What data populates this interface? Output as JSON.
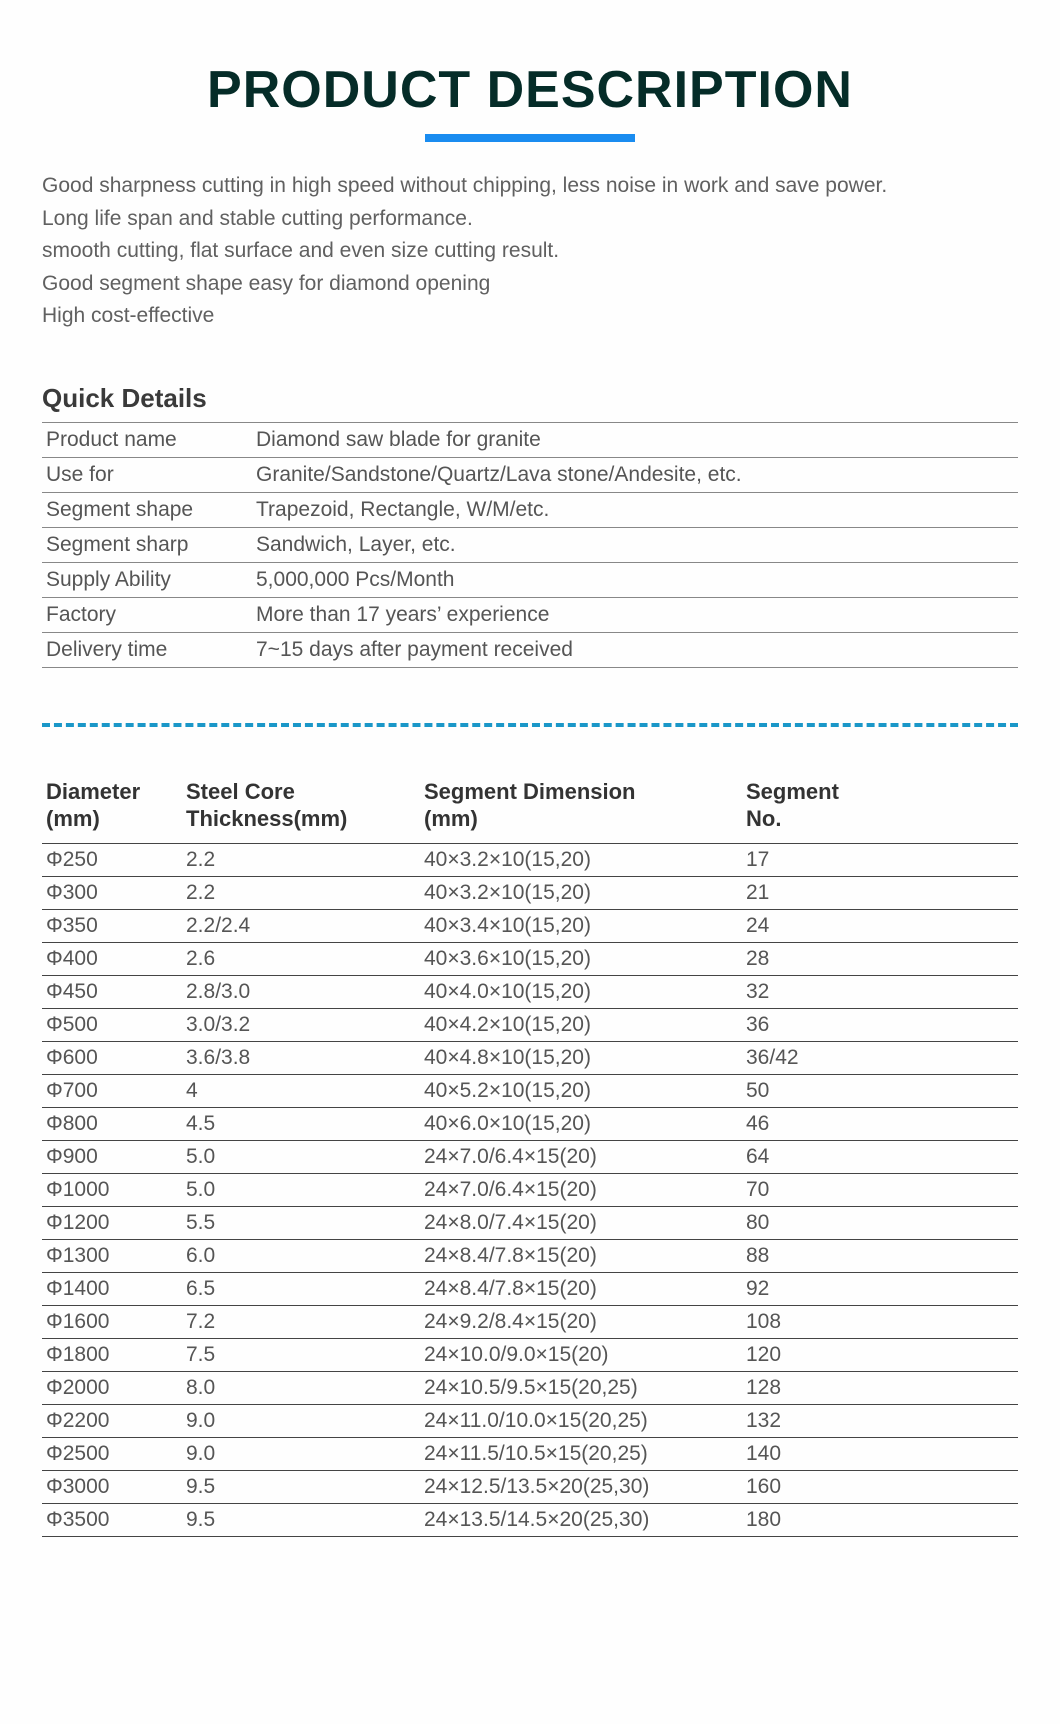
{
  "title": "PRODUCT DESCRIPTION",
  "title_color": "#052c28",
  "title_fontsize": 52,
  "underline_color": "#1a8cf0",
  "underline_width": 210,
  "underline_height": 8,
  "description_lines": [
    "Good sharpness cutting in high speed without chipping, less noise in work and save power.",
    "Long life span and stable cutting performance.",
    "smooth cutting, flat surface and even size cutting result.",
    "Good segment shape easy for diamond opening",
    "High cost-effective"
  ],
  "quick_details_title": "Quick Details",
  "quick_details": [
    {
      "label": "Product name",
      "value": "Diamond saw blade for granite"
    },
    {
      "label": "Use for",
      "value": "Granite/Sandstone/Quartz/Lava stone/Andesite, etc."
    },
    {
      "label": "Segment shape",
      "value": "Trapezoid, Rectangle, W/M/etc."
    },
    {
      "label": "Segment sharp",
      "value": "Sandwich, Layer, etc."
    },
    {
      "label": "Supply Ability",
      "value": "5,000,000 Pcs/Month"
    },
    {
      "label": "Factory",
      "value": "More than 17 years’ experience"
    },
    {
      "label": "Delivery time",
      "value": "7~15 days after payment received"
    }
  ],
  "divider_color": "#1a97c8",
  "spec_headers": {
    "diameter": "Diameter\n(mm)",
    "thickness": "Steel Core\nThickness(mm)",
    "segdim": "Segment Dimension\n (mm)",
    "segno": "Segment\nNo."
  },
  "spec_rows": [
    {
      "diameter": "Φ250",
      "thickness": "2.2",
      "segdim": "40×3.2×10(15,20)",
      "segno": "17"
    },
    {
      "diameter": "Φ300",
      "thickness": "2.2",
      "segdim": "40×3.2×10(15,20)",
      "segno": "21"
    },
    {
      "diameter": "Φ350",
      "thickness": "2.2/2.4",
      "segdim": "40×3.4×10(15,20)",
      "segno": "24"
    },
    {
      "diameter": "Φ400",
      "thickness": "2.6",
      "segdim": "40×3.6×10(15,20)",
      "segno": "28"
    },
    {
      "diameter": "Φ450",
      "thickness": "2.8/3.0",
      "segdim": "40×4.0×10(15,20)",
      "segno": "32"
    },
    {
      "diameter": "Φ500",
      "thickness": "3.0/3.2",
      "segdim": "40×4.2×10(15,20)",
      "segno": "36"
    },
    {
      "diameter": "Φ600",
      "thickness": "3.6/3.8",
      "segdim": "40×4.8×10(15,20)",
      "segno": "36/42"
    },
    {
      "diameter": "Φ700",
      "thickness": "4",
      "segdim": "40×5.2×10(15,20)",
      "segno": "50"
    },
    {
      "diameter": "Φ800",
      "thickness": "4.5",
      "segdim": "40×6.0×10(15,20)",
      "segno": "46"
    },
    {
      "diameter": "Φ900",
      "thickness": "5.0",
      "segdim": "24×7.0/6.4×15(20)",
      "segno": "64"
    },
    {
      "diameter": "Φ1000",
      "thickness": "5.0",
      "segdim": "24×7.0/6.4×15(20)",
      "segno": "70"
    },
    {
      "diameter": "Φ1200",
      "thickness": "5.5",
      "segdim": "24×8.0/7.4×15(20)",
      "segno": "80"
    },
    {
      "diameter": "Φ1300",
      "thickness": "6.0",
      "segdim": "24×8.4/7.8×15(20)",
      "segno": "88"
    },
    {
      "diameter": "Φ1400",
      "thickness": "6.5",
      "segdim": "24×8.4/7.8×15(20)",
      "segno": "92"
    },
    {
      "diameter": "Φ1600",
      "thickness": "7.2",
      "segdim": "24×9.2/8.4×15(20)",
      "segno": "108"
    },
    {
      "diameter": "Φ1800",
      "thickness": "7.5",
      "segdim": "24×10.0/9.0×15(20)",
      "segno": "120"
    },
    {
      "diameter": "Φ2000",
      "thickness": "8.0",
      "segdim": "24×10.5/9.5×15(20,25)",
      "segno": "128"
    },
    {
      "diameter": "Φ2200",
      "thickness": "9.0",
      "segdim": "24×11.0/10.0×15(20,25)",
      "segno": "132"
    },
    {
      "diameter": "Φ2500",
      "thickness": "9.0",
      "segdim": "24×11.5/10.5×15(20,25)",
      "segno": "140"
    },
    {
      "diameter": "Φ3000",
      "thickness": "9.5",
      "segdim": "24×12.5/13.5×20(25,30)",
      "segno": "160"
    },
    {
      "diameter": "Φ3500",
      "thickness": "9.5",
      "segdim": "24×13.5/14.5×20(25,30)",
      "segno": "180"
    }
  ],
  "body_bg": "#fefefe",
  "text_color": "#555555",
  "border_color": "#444444",
  "col_widths": {
    "diameter": 140,
    "thickness": 230,
    "segdim": 330
  }
}
